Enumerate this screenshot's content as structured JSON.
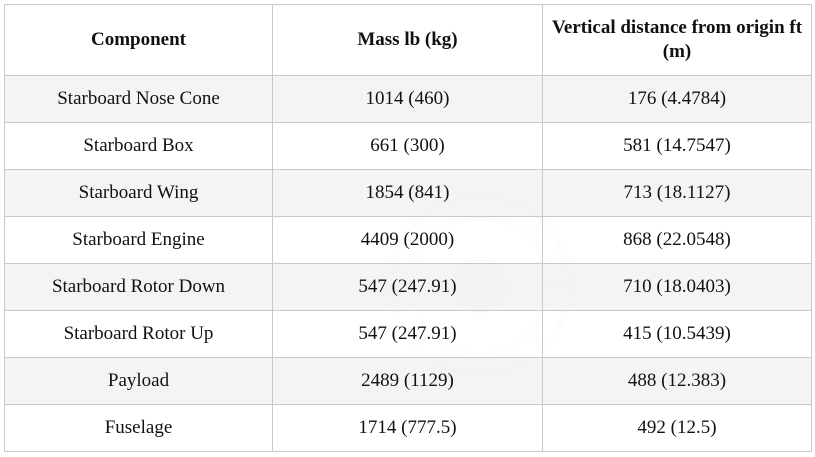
{
  "table": {
    "headers": [
      "Component",
      "Mass lb  (kg)",
      "Vertical distance from origin ft  (m)"
    ],
    "rows": [
      [
        "Starboard Nose Cone",
        "1014 (460)",
        "176 (4.4784)"
      ],
      [
        "Starboard Box",
        "661 (300)",
        "581 (14.7547)"
      ],
      [
        "Starboard Wing",
        "1854 (841)",
        "713 (18.1127)"
      ],
      [
        "Starboard Engine",
        "4409 (2000)",
        "868 (22.0548)"
      ],
      [
        "Starboard Rotor Down",
        "547 (247.91)",
        "710 (18.0403)"
      ],
      [
        "Starboard Rotor Up",
        "547 (247.91)",
        "415 (10.5439)"
      ],
      [
        "Payload",
        "2489 (1129)",
        "488 (12.383)"
      ],
      [
        "Fuselage",
        "1714 (777.5)",
        "492 (12.5)"
      ]
    ]
  },
  "colors": {
    "border": "#c9c9c9",
    "row_shade": "#f3f3f3",
    "watermark": "#c0392b"
  },
  "watermark": {
    "icon": "emblem-seal-icon"
  }
}
